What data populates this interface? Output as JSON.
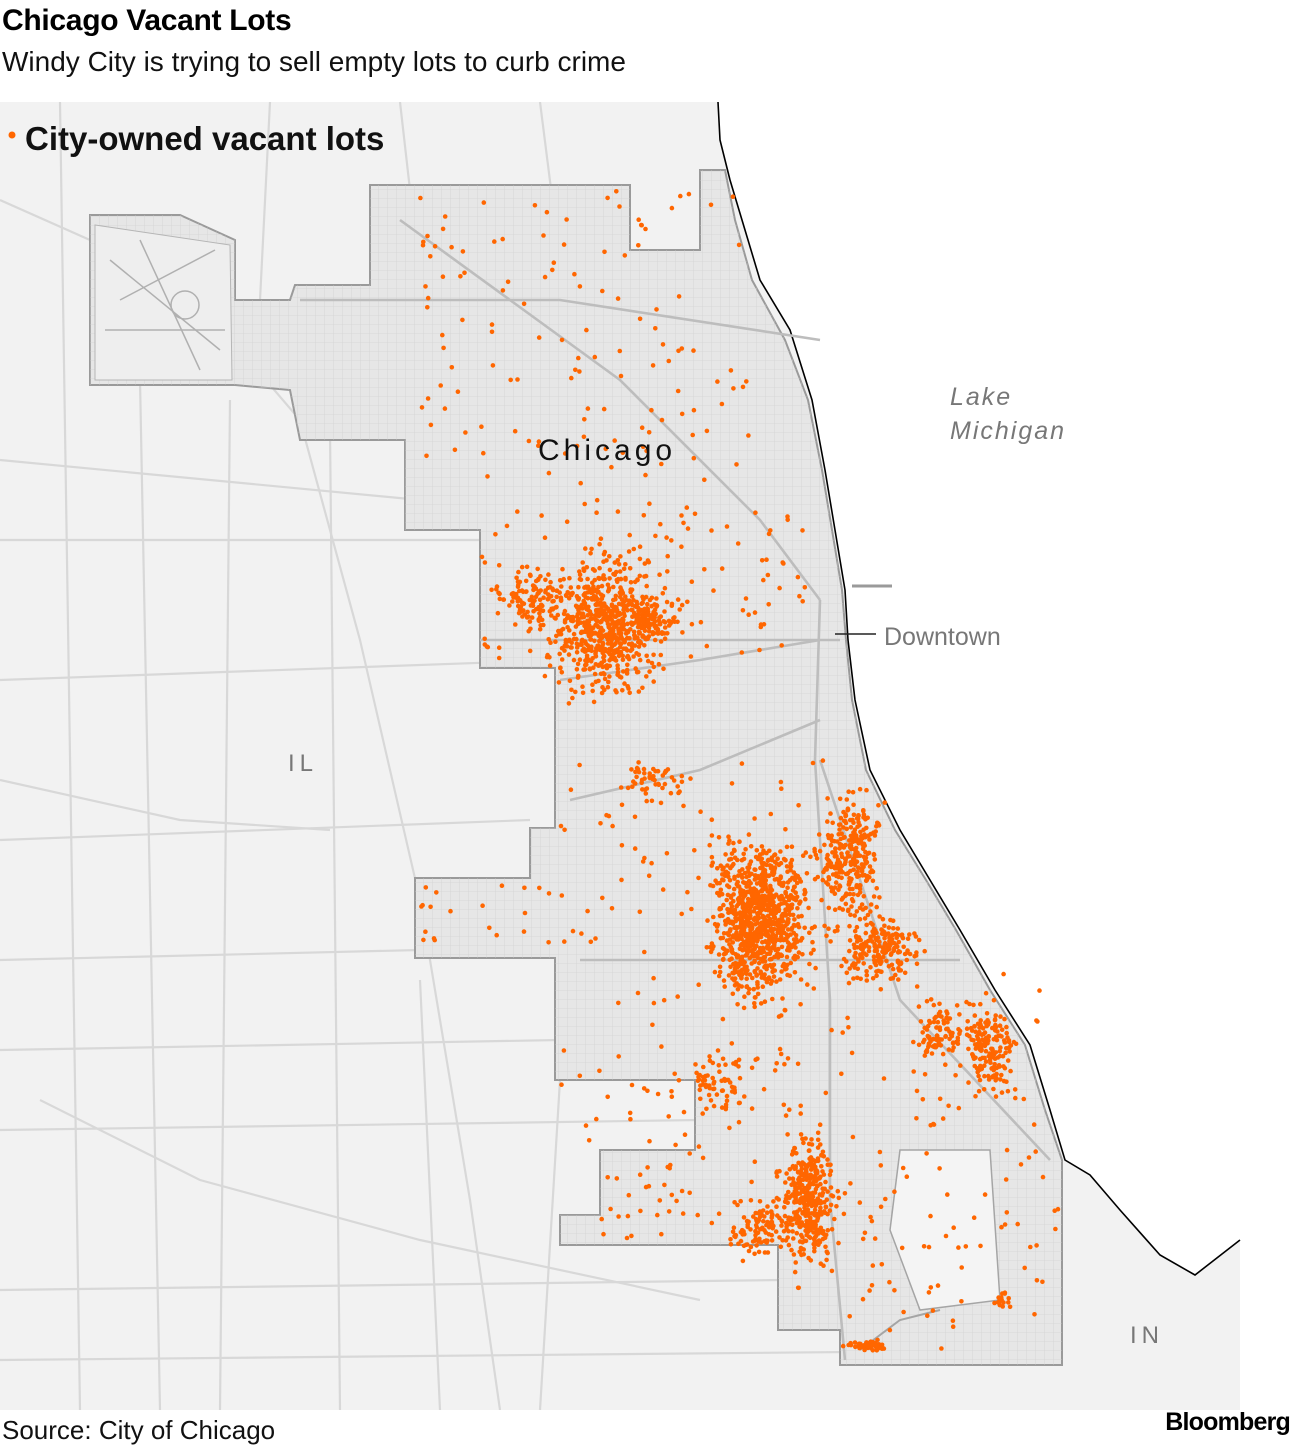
{
  "title": "Chicago Vacant Lots",
  "subtitle": "Windy City is trying to sell empty lots to curb crime",
  "legend": {
    "label": "City-owned vacant lots",
    "dot_color": "#ff6600"
  },
  "labels": {
    "city": "Chicago",
    "lake_line1": "Lake",
    "lake_line2": "Michigan",
    "downtown": "Downtown",
    "state_il": "IL",
    "state_in": "IN"
  },
  "colors": {
    "land": "#f2f2f2",
    "city_fill": "#e6e6e6",
    "roads": "#dcdcdc",
    "lots": "#ff6600",
    "shore": "#000000"
  },
  "source": "Source: City of Chicago",
  "brand": "Bloomberg"
}
